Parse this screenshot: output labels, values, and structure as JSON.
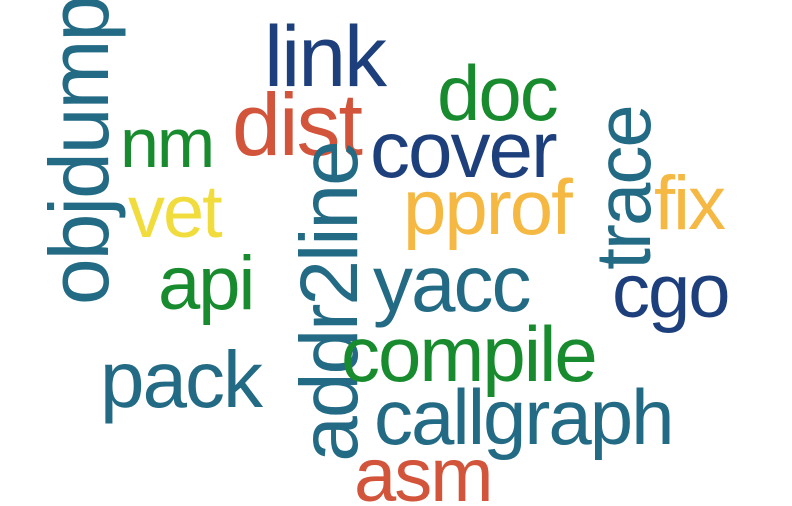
{
  "words": {
    "objdump": {
      "text": "objdump",
      "color": "#236a84",
      "orientation": "vertical"
    },
    "link": {
      "text": "link",
      "color": "#1d3f7c",
      "orientation": "horizontal"
    },
    "dist": {
      "text": "dist",
      "color": "#d2553b",
      "orientation": "horizontal"
    },
    "nm": {
      "text": "nm",
      "color": "#188b2e",
      "orientation": "horizontal"
    },
    "doc": {
      "text": "doc",
      "color": "#188b2e",
      "orientation": "horizontal"
    },
    "cover": {
      "text": "cover",
      "color": "#1d3f7c",
      "orientation": "horizontal"
    },
    "trace": {
      "text": "trace",
      "color": "#236a84",
      "orientation": "vertical"
    },
    "vet": {
      "text": "vet",
      "color": "#f1dc3e",
      "orientation": "horizontal"
    },
    "pprof": {
      "text": "pprof",
      "color": "#f5b843",
      "orientation": "horizontal"
    },
    "fix": {
      "text": "fix",
      "color": "#f5b843",
      "orientation": "horizontal"
    },
    "addr2line": {
      "text": "addr2line",
      "color": "#236a84",
      "orientation": "vertical"
    },
    "api": {
      "text": "api",
      "color": "#188b2e",
      "orientation": "horizontal"
    },
    "yacc": {
      "text": "yacc",
      "color": "#236a84",
      "orientation": "horizontal"
    },
    "cgo": {
      "text": "cgo",
      "color": "#1d3f7c",
      "orientation": "horizontal"
    },
    "compile": {
      "text": "compile",
      "color": "#188b2e",
      "orientation": "horizontal"
    },
    "pack": {
      "text": "pack",
      "color": "#236a84",
      "orientation": "horizontal"
    },
    "callgraph": {
      "text": "callgraph",
      "color": "#236a84",
      "orientation": "horizontal"
    },
    "asm": {
      "text": "asm",
      "color": "#d2553b",
      "orientation": "horizontal"
    }
  }
}
